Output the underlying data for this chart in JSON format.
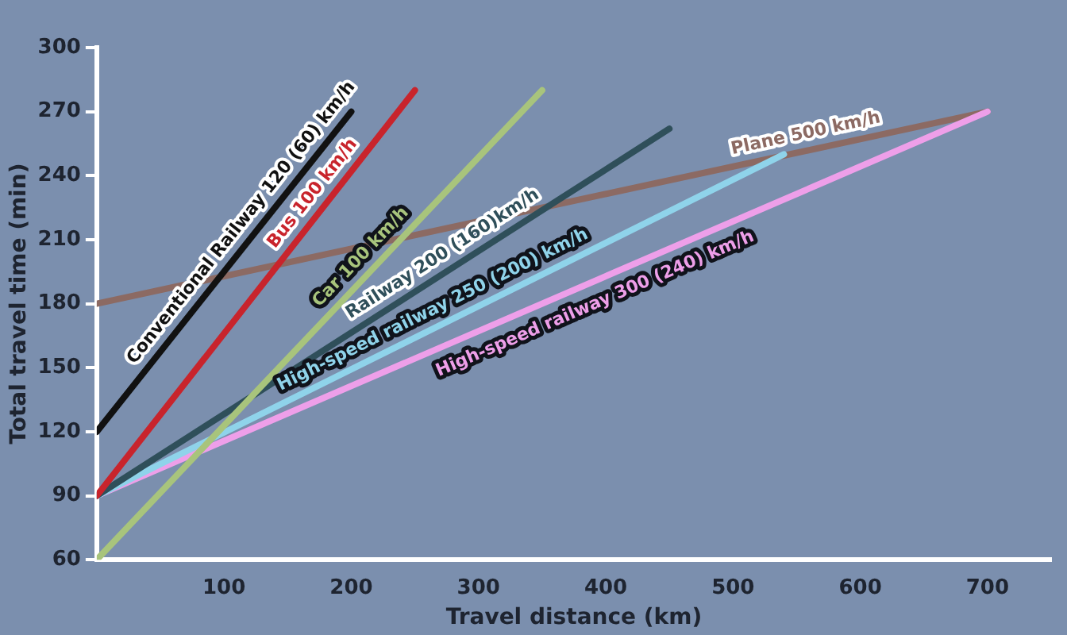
{
  "chart_data": {
    "type": "line",
    "xlabel": "Travel distance (km)",
    "ylabel": "Total travel time (min)",
    "xlim": [
      0,
      750
    ],
    "xticks": [
      100,
      200,
      300,
      400,
      500,
      600,
      700
    ],
    "ylim": [
      60,
      300
    ],
    "yticks": [
      60,
      90,
      120,
      150,
      180,
      210,
      240,
      270,
      300
    ],
    "grid": false,
    "legend": false,
    "marker": "none",
    "line_style": "solid",
    "series": [
      {
        "name": "Conventional Railway 120 (60) km/h",
        "color": "#111111",
        "x": [
          0,
          200
        ],
        "values": [
          120,
          270
        ]
      },
      {
        "name": "Bus 100 km/h",
        "color": "#c8242c",
        "x": [
          0,
          250
        ],
        "values": [
          90,
          280
        ]
      },
      {
        "name": "Car 100 km/h",
        "color": "#a8c47c",
        "x": [
          0,
          350
        ],
        "values": [
          60,
          280
        ]
      },
      {
        "name": "Railway 200 (160)km/h",
        "color": "#2f4f5a",
        "x": [
          0,
          450
        ],
        "values": [
          90,
          262
        ]
      },
      {
        "name": "High-speed railway 250 (200) km/h",
        "color": "#8fd3ea",
        "x": [
          0,
          540
        ],
        "values": [
          90,
          250
        ]
      },
      {
        "name": "High-speed railway 300 (240) km/h",
        "color": "#ee9fe9",
        "x": [
          0,
          700
        ],
        "values": [
          90,
          270
        ]
      },
      {
        "name": "Plane 500 km/h",
        "color": "#8c6a63",
        "x": [
          0,
          700
        ],
        "values": [
          180,
          270
        ]
      }
    ]
  }
}
